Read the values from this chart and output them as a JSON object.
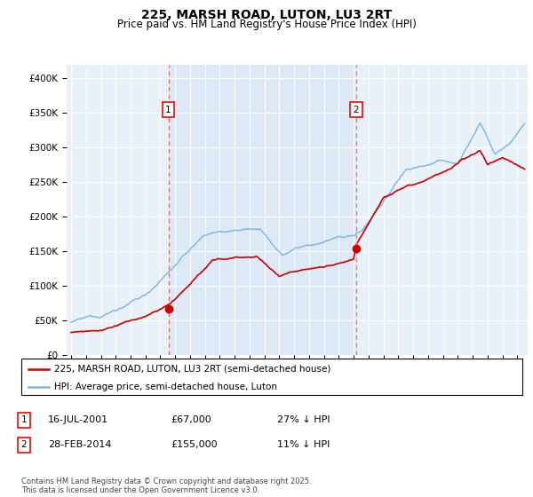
{
  "title": "225, MARSH ROAD, LUTON, LU3 2RT",
  "subtitle": "Price paid vs. HM Land Registry's House Price Index (HPI)",
  "ylabel_ticks": [
    "£0",
    "£50K",
    "£100K",
    "£150K",
    "£200K",
    "£250K",
    "£300K",
    "£350K",
    "£400K"
  ],
  "ytick_values": [
    0,
    50000,
    100000,
    150000,
    200000,
    250000,
    300000,
    350000,
    400000
  ],
  "ylim": [
    0,
    420000
  ],
  "xlim_start": 1994.7,
  "xlim_end": 2025.7,
  "hpi_color": "#7ab5e0",
  "price_color": "#cc0000",
  "shade_color": "#dce9f7",
  "bg_color": "#e8f0f8",
  "marker1_date": 2001.54,
  "marker1_price": 67000,
  "marker2_date": 2014.16,
  "marker2_price": 155000,
  "legend_line1": "225, MARSH ROAD, LUTON, LU3 2RT (semi-detached house)",
  "legend_line2": "HPI: Average price, semi-detached house, Luton",
  "footnote": "Contains HM Land Registry data © Crown copyright and database right 2025.\nThis data is licensed under the Open Government Licence v3.0."
}
